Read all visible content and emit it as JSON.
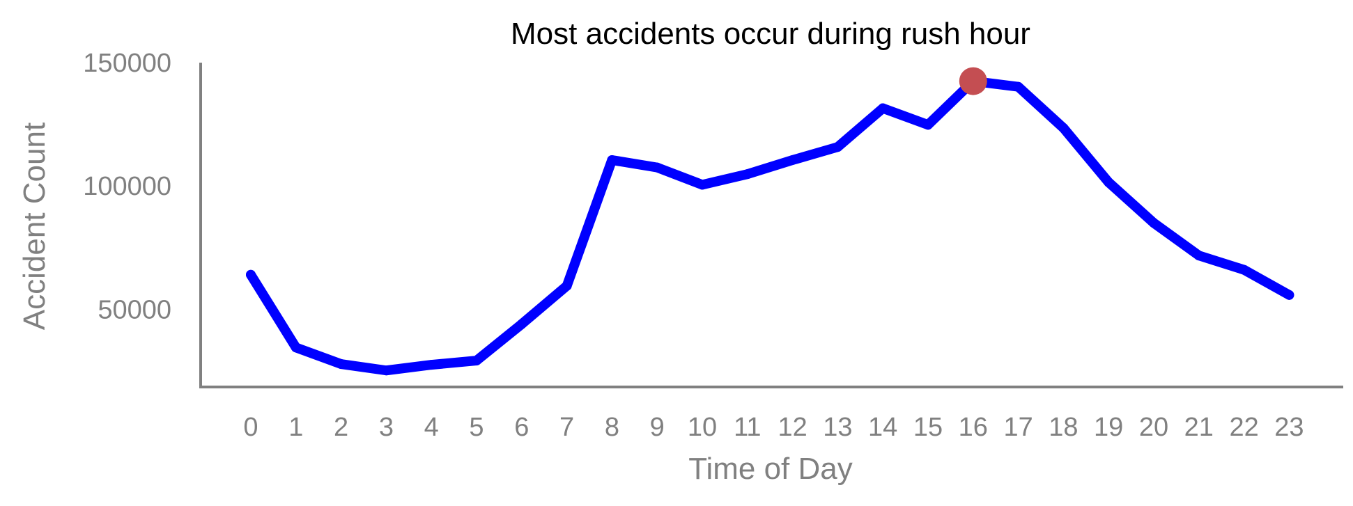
{
  "chart_data": {
    "type": "line",
    "title": "Most accidents occur during rush hour",
    "xlabel": "Time of Day",
    "ylabel": "Accident Count",
    "x": [
      0,
      1,
      2,
      3,
      4,
      5,
      6,
      7,
      8,
      9,
      10,
      11,
      12,
      13,
      14,
      15,
      16,
      17,
      18,
      19,
      20,
      21,
      22,
      23
    ],
    "x_tick_labels": [
      "0",
      "1",
      "2",
      "3",
      "4",
      "5",
      "6",
      "7",
      "8",
      "9",
      "10",
      "11",
      "12",
      "13",
      "14",
      "15",
      "16",
      "17",
      "18",
      "19",
      "20",
      "21",
      "22",
      "23"
    ],
    "series": [
      {
        "values": [
          64000,
          34500,
          27800,
          25200,
          27500,
          29200,
          44000,
          59500,
          110500,
          107500,
          100500,
          104800,
          110500,
          115800,
          131500,
          124800,
          142500,
          140200,
          123500,
          101500,
          85000,
          71800,
          66000,
          55800
        ],
        "color": "#0000ff"
      }
    ],
    "highlight": {
      "x": 16,
      "y": 142500,
      "color": "#c44e52"
    },
    "y_ticks": [
      50000,
      100000,
      150000
    ],
    "y_tick_labels": [
      "50000",
      "100000",
      "150000"
    ],
    "ylim": [
      18500,
      150000
    ],
    "grid": false,
    "legend": "none",
    "axis_color": "#808080"
  }
}
